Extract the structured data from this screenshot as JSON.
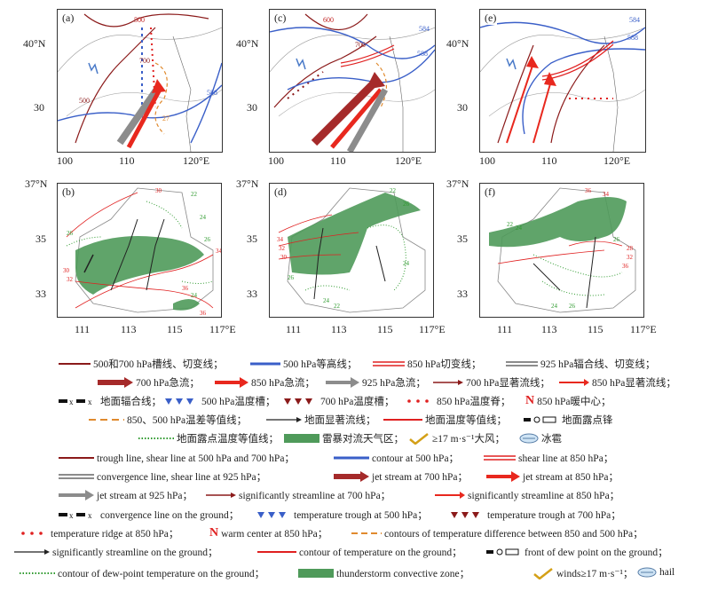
{
  "panels": {
    "a": "(a)",
    "b": "(b)",
    "c": "(c)",
    "d": "(d)",
    "e": "(e)",
    "f": "(f)"
  },
  "top_axis": {
    "lat_40": "40°N",
    "lat_30": "30",
    "lon": [
      "100",
      "110",
      "120°E"
    ]
  },
  "bottom_axis": {
    "lat_37": "37°N",
    "lat_35": "35",
    "lat_33": "33",
    "lon": [
      "111",
      "113",
      "115",
      "117°E"
    ]
  },
  "map_labels": {
    "a": [
      "500",
      "700",
      "588",
      "500",
      "27"
    ],
    "c": [
      "600",
      "700",
      "584",
      "588"
    ],
    "e": [
      "584",
      "588"
    ],
    "b": [
      "30",
      "22",
      "24",
      "26",
      "34",
      "32",
      "30",
      "36",
      "36",
      "24",
      "26"
    ],
    "d": [
      "22",
      "26",
      "34",
      "32",
      "30",
      "26",
      "24",
      "24",
      "22"
    ],
    "f": [
      "36",
      "34",
      "24",
      "22",
      "26",
      "28",
      "32",
      "36",
      "24",
      "26"
    ]
  },
  "legend_cn": {
    "r1": [
      "500和700 hPa槽线、切变线；",
      "500 hPa等高线；",
      "850 hPa切变线；",
      "925 hPa辐合线、切变线；"
    ],
    "r2": [
      "700 hPa急流；",
      "850 hPa急流；",
      "925 hPa急流；",
      "700 hPa显著流线；",
      "850 hPa显著流线；"
    ],
    "r3": [
      "地面辐合线；",
      "500 hPa温度槽；",
      "700 hPa温度槽；",
      "850 hPa温度脊；",
      "N",
      "850 hPa暖中心；"
    ],
    "r4": [
      "850、500 hPa温差等值线；",
      "地面显著流线；",
      "地面温度等值线；",
      "地面露点锋"
    ],
    "r5": [
      "地面露点温度等值线；",
      "雷暴对流天气区；",
      "≥17 m·s⁻¹大风；",
      "冰雹"
    ]
  },
  "legend_en": {
    "r1": [
      "trough line, shear line at 500 hPa and 700 hPa；",
      "contour at 500 hPa；",
      "shear line at 850 hPa；"
    ],
    "r2": [
      "convergence line, shear line at 925 hPa；",
      "jet stream at 700 hPa；",
      "jet stream at 850 hPa；"
    ],
    "r3": [
      "jet stream at 925 hPa；",
      "significantly streamline at 700 hPa；",
      "significantly streamline at 850 hPa；"
    ],
    "r4": [
      "convergence line on the ground；",
      "temperature trough at 500 hPa；",
      "temperature trough at 700 hPa；"
    ],
    "r5": [
      "temperature ridge at 850 hPa；",
      "N",
      "warm center at 850 hPa；",
      "contours of temperature difference between 850 and 500 hPa；"
    ],
    "r6": [
      "significantly streamline on the ground；",
      "contour of temperature on the ground；",
      "front of dew point on the ground；"
    ],
    "r7": [
      "contour of dew-point temperature on the ground；",
      "thunderstorm convective zone；",
      "winds≥17 m·s⁻¹；",
      "hail"
    ]
  },
  "colors": {
    "trough": "#8b1a1a",
    "contour": "#3a5fc8",
    "shear850": "#e02020",
    "jet700": "#a52a2a",
    "jet850": "#e8281e",
    "jet925": "#8c8c8c",
    "tempdiff": "#e08a2e",
    "dew": "#2e9a2e",
    "storm": "#4f9a5a"
  }
}
